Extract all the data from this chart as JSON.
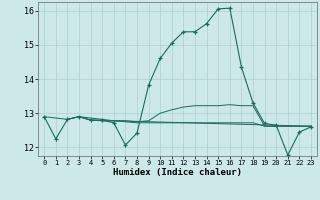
{
  "xlabel": "Humidex (Indice chaleur)",
  "bg_color": "#cce8e8",
  "line_color": "#1a6b60",
  "grid_color": "#aad0d0",
  "xlim": [
    -0.5,
    23.5
  ],
  "ylim": [
    11.75,
    16.25
  ],
  "yticks": [
    12,
    13,
    14,
    15,
    16
  ],
  "xticks": [
    0,
    1,
    2,
    3,
    4,
    5,
    6,
    7,
    8,
    9,
    10,
    11,
    12,
    13,
    14,
    15,
    16,
    17,
    18,
    19,
    20,
    21,
    22,
    23
  ],
  "line1_x": [
    0,
    1,
    2,
    3,
    4,
    5,
    6,
    7,
    8,
    9,
    10,
    11,
    12,
    13,
    14,
    15,
    16,
    17,
    18,
    19,
    20,
    21,
    22,
    23
  ],
  "line1_y": [
    12.9,
    12.25,
    12.82,
    12.9,
    12.8,
    12.8,
    12.72,
    12.07,
    12.42,
    13.82,
    14.6,
    15.05,
    15.38,
    15.38,
    15.62,
    16.05,
    16.07,
    14.35,
    13.3,
    12.7,
    12.65,
    11.78,
    12.45,
    12.6
  ],
  "line2_x": [
    0,
    2,
    3,
    4,
    5,
    6,
    23
  ],
  "line2_y": [
    12.9,
    12.82,
    12.9,
    12.8,
    12.78,
    12.78,
    12.62
  ],
  "line3_x": [
    2,
    3,
    4,
    5,
    6,
    7,
    8,
    9,
    10,
    11,
    12,
    13,
    14,
    15,
    16,
    17,
    18,
    19,
    20,
    21,
    22,
    23
  ],
  "line3_y": [
    12.82,
    12.9,
    12.8,
    12.78,
    12.78,
    12.75,
    12.72,
    12.72,
    12.72,
    12.72,
    12.72,
    12.72,
    12.72,
    12.72,
    12.72,
    12.72,
    12.72,
    12.62,
    12.62,
    12.62,
    12.62,
    12.62
  ],
  "line4_x": [
    3,
    6,
    7,
    8,
    9,
    10,
    11,
    12,
    13,
    14,
    15,
    16,
    17,
    18,
    19,
    20,
    21,
    22,
    23
  ],
  "line4_y": [
    12.9,
    12.78,
    12.78,
    12.75,
    12.78,
    13.0,
    13.1,
    13.18,
    13.22,
    13.22,
    13.22,
    13.25,
    13.22,
    13.22,
    12.62,
    12.62,
    12.62,
    12.62,
    12.62
  ]
}
